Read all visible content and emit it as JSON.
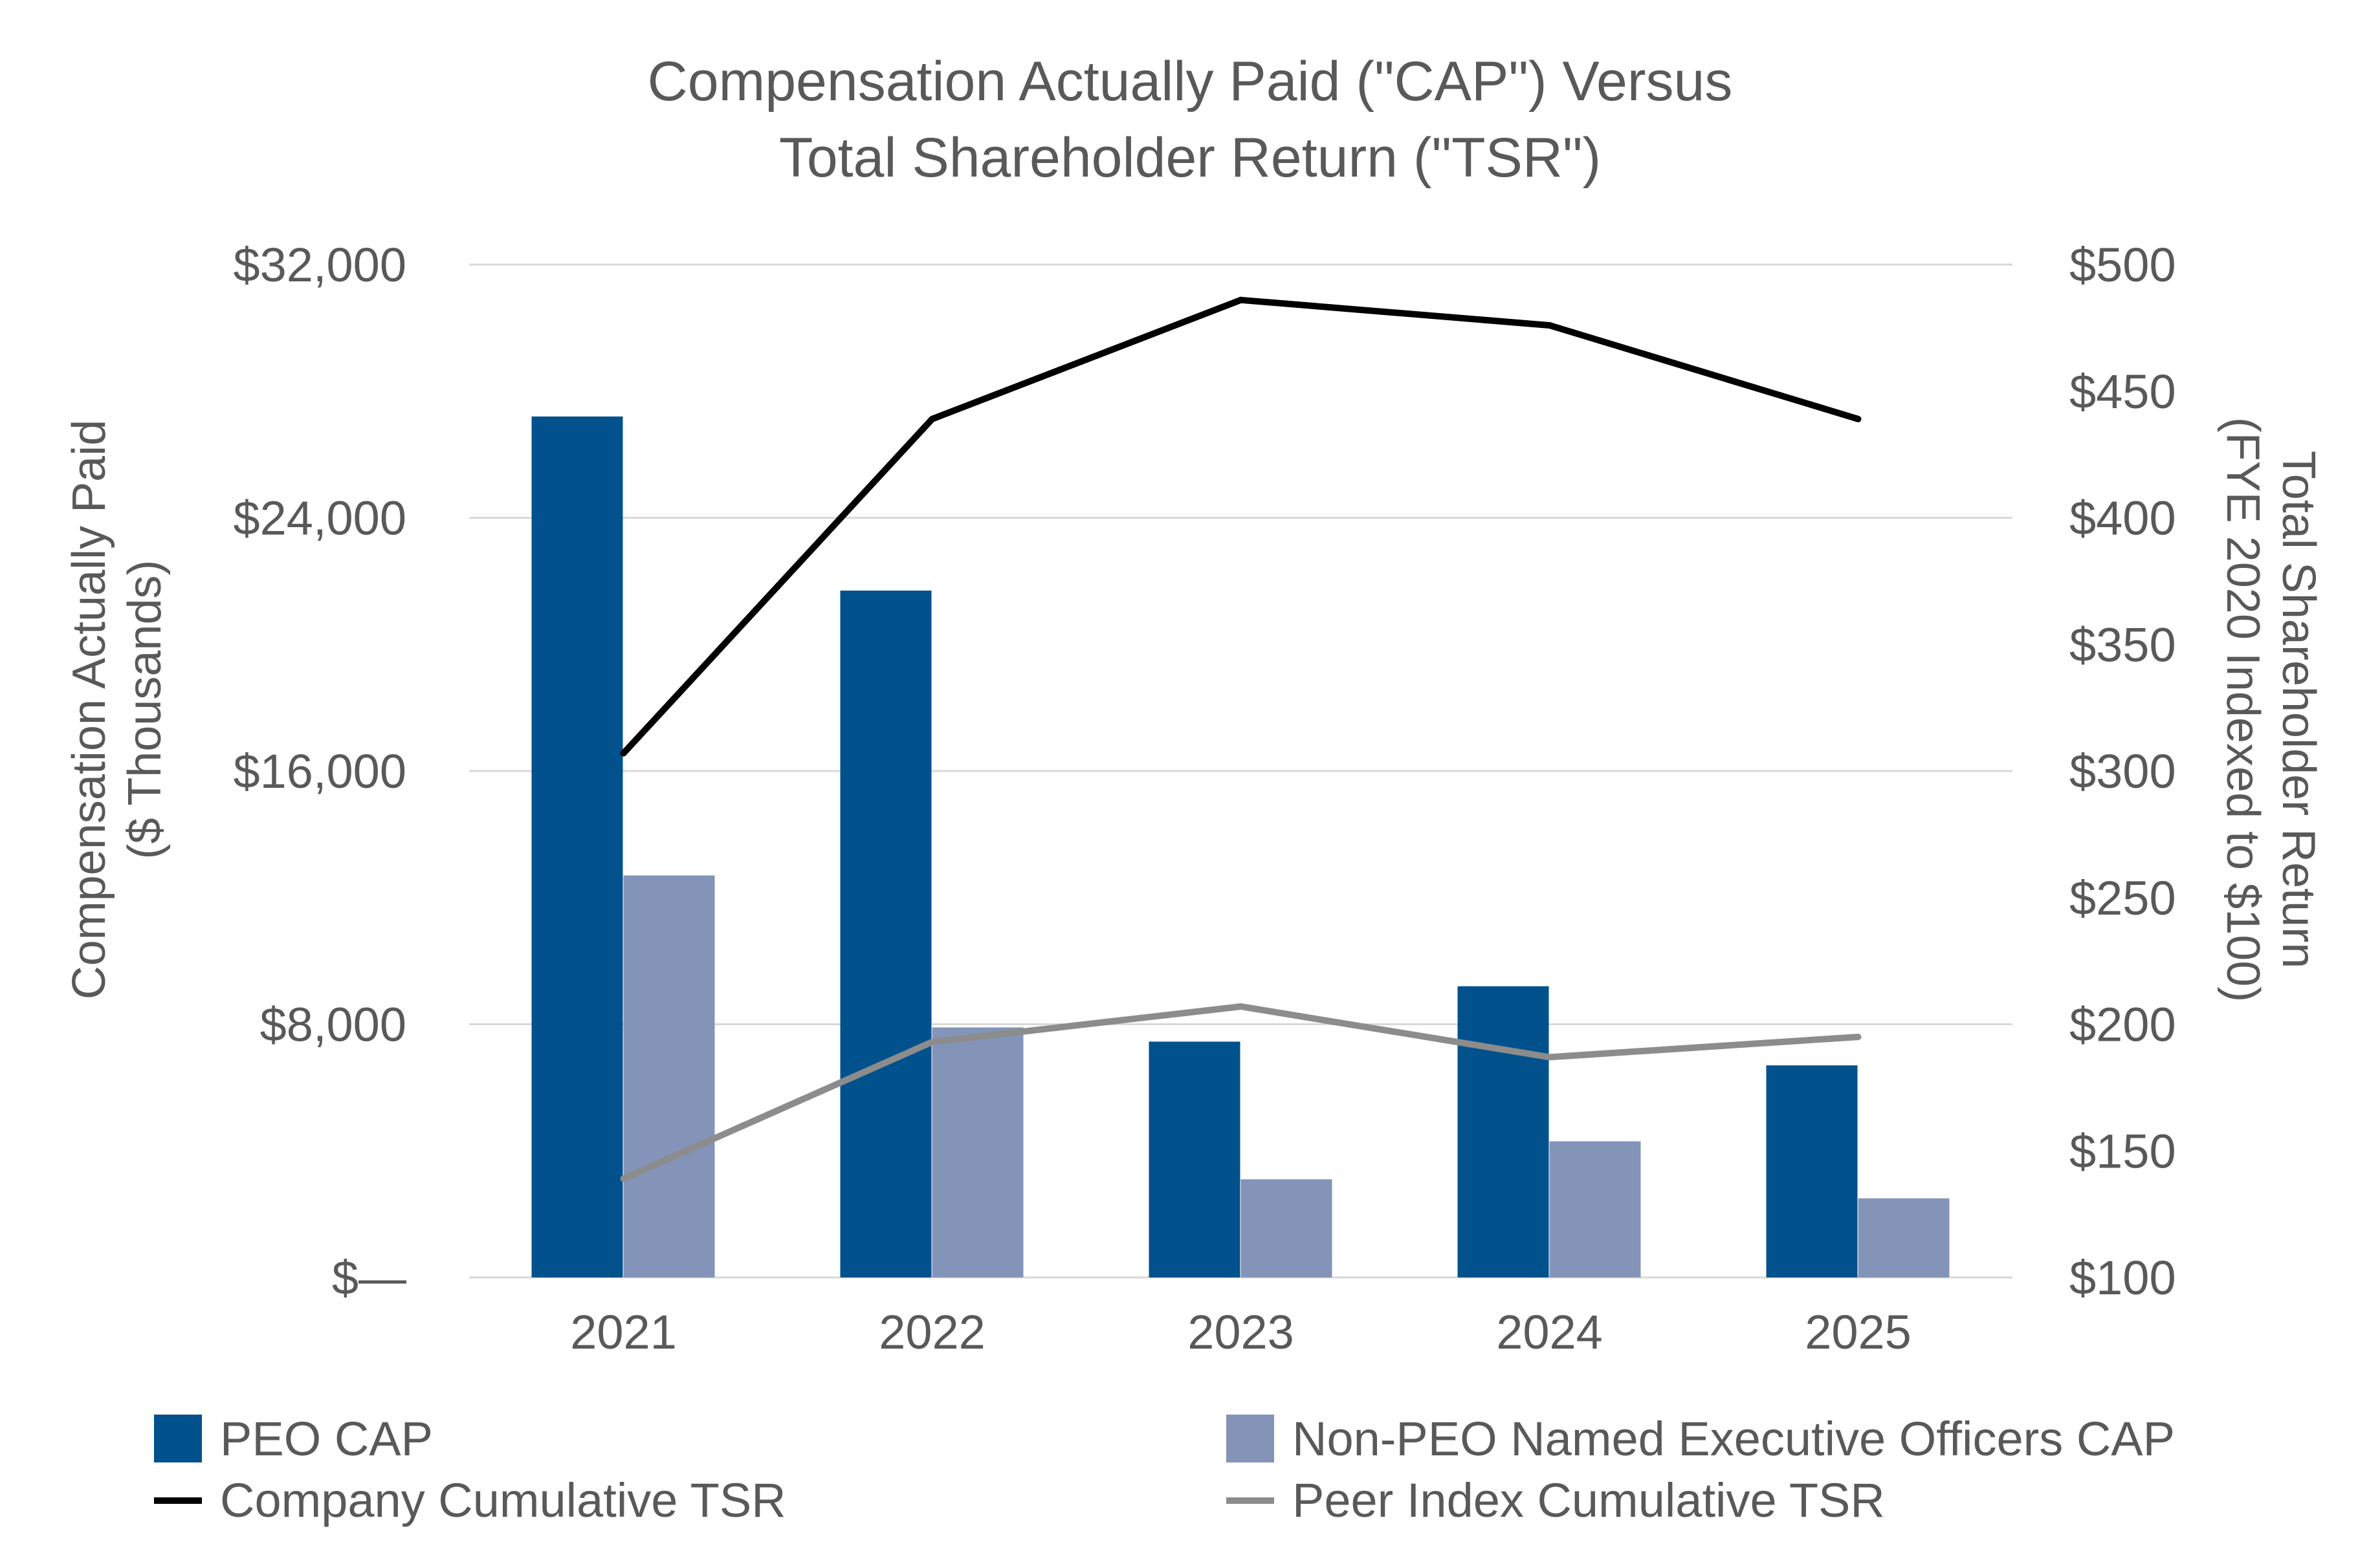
{
  "chart_data": {
    "type": "bar",
    "title": [
      "Compensation Actually Paid (\"CAP\") Versus",
      "Total Shareholder Return (\"TSR\")"
    ],
    "categories": [
      "2021",
      "2022",
      "2023",
      "2024",
      "2025"
    ],
    "y_left": {
      "label": [
        "Compensation Actually Paid",
        "($ Thousands)"
      ],
      "ylim": [
        0,
        32000
      ],
      "ticks": [
        0,
        8000,
        16000,
        24000,
        32000
      ],
      "tick_labels": [
        "$—",
        "$8,000",
        "$16,000",
        "$24,000",
        "$32,000"
      ]
    },
    "y_right": {
      "label": [
        "Total Shareholder Return",
        "(FYE 2020 Indexed to $100)"
      ],
      "ylim": [
        100,
        500
      ],
      "ticks": [
        100,
        150,
        200,
        250,
        300,
        350,
        400,
        450,
        500
      ],
      "tick_labels": [
        "$100",
        "$150",
        "$200",
        "$250",
        "$300",
        "$350",
        "$400",
        "$450",
        "$500"
      ]
    },
    "grid": true,
    "legend_position": "bottom",
    "series": [
      {
        "name": "PEO CAP",
        "kind": "bar",
        "axis": "left",
        "color": "#00518c",
        "values": [
          27200,
          21700,
          7450,
          9200,
          6700
        ]
      },
      {
        "name": "Non-PEO Named Executive Officers CAP",
        "kind": "bar",
        "axis": "left",
        "color": "#8394b8",
        "values": [
          12700,
          7900,
          3100,
          4300,
          2500
        ]
      },
      {
        "name": "Company Cumulative TSR",
        "kind": "line",
        "axis": "right",
        "color": "#000000",
        "values": [
          307,
          439,
          486,
          476,
          439
        ]
      },
      {
        "name": "Peer Index Cumulative TSR",
        "kind": "line",
        "axis": "right",
        "color": "#8c8c8c",
        "values": [
          139,
          193,
          207,
          187,
          195
        ]
      }
    ]
  }
}
